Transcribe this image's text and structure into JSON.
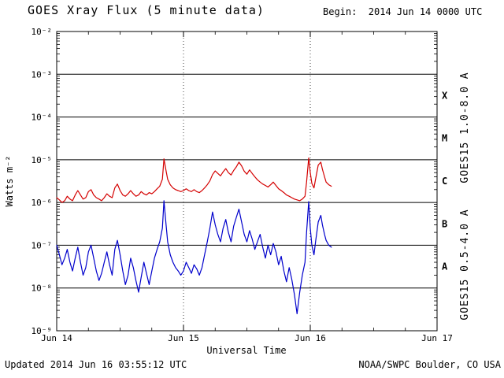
{
  "header": {
    "title": "GOES Xray Flux (5 minute data)",
    "begin_label": "Begin:  2014 Jun 14 0000 UTC"
  },
  "footer": {
    "updated": "Updated 2014 Jun 16 03:55:12 UTC",
    "credit": "NOAA/SWPC Boulder, CO USA"
  },
  "chart_data": {
    "type": "line",
    "title": "GOES Xray Flux (5 minute data)",
    "xlabel": "Universal Time",
    "ylabel": "Watts m⁻²",
    "x_unit": "hours since 2014 Jun 14 00:00 UTC",
    "x_range_hours": [
      0,
      72
    ],
    "y_log_range": [
      1e-09,
      0.01
    ],
    "y_scale": "log",
    "grid": "solid horizontal line at each decade; dotted vertical line at interior day boundaries",
    "legend_position": "right, rotated vertical labels",
    "x_ticks": [
      {
        "hours": 0,
        "label": "Jun 14"
      },
      {
        "hours": 24,
        "label": "Jun 15"
      },
      {
        "hours": 48,
        "label": "Jun 16"
      },
      {
        "hours": 72,
        "label": "Jun 17"
      }
    ],
    "y_ticks": [
      {
        "value": 0.01,
        "label": "10⁻²"
      },
      {
        "value": 0.001,
        "label": "10⁻³"
      },
      {
        "value": 0.0001,
        "label": "10⁻⁴"
      },
      {
        "value": 1e-05,
        "label": "10⁻⁵"
      },
      {
        "value": 1e-06,
        "label": "10⁻⁶"
      },
      {
        "value": 1e-07,
        "label": "10⁻⁷"
      },
      {
        "value": 1e-08,
        "label": "10⁻⁸"
      },
      {
        "value": 1e-09,
        "label": "10⁻⁹"
      }
    ],
    "flare_classes": [
      {
        "label": "X",
        "log_mid": -3.5
      },
      {
        "label": "M",
        "log_mid": -4.5
      },
      {
        "label": "C",
        "log_mid": -5.5
      },
      {
        "label": "B",
        "log_mid": -6.5
      },
      {
        "label": "A",
        "log_mid": -7.5
      }
    ],
    "series": [
      {
        "name": "GOES15 1.0-8.0 A",
        "color": "#d40000",
        "points": [
          [
            0,
            1.3e-06
          ],
          [
            0.5,
            1.15e-06
          ],
          [
            1,
            1e-06
          ],
          [
            1.5,
            1.1e-06
          ],
          [
            2,
            1.4e-06
          ],
          [
            2.5,
            1.2e-06
          ],
          [
            3,
            1.1e-06
          ],
          [
            3.5,
            1.5e-06
          ],
          [
            4,
            1.9e-06
          ],
          [
            4.5,
            1.5e-06
          ],
          [
            5,
            1.2e-06
          ],
          [
            5.5,
            1.3e-06
          ],
          [
            6,
            1.8e-06
          ],
          [
            6.5,
            2e-06
          ],
          [
            7,
            1.5e-06
          ],
          [
            7.5,
            1.3e-06
          ],
          [
            8,
            1.2e-06
          ],
          [
            8.5,
            1.1e-06
          ],
          [
            9,
            1.3e-06
          ],
          [
            9.5,
            1.6e-06
          ],
          [
            10,
            1.4e-06
          ],
          [
            10.5,
            1.3e-06
          ],
          [
            11,
            2.2e-06
          ],
          [
            11.5,
            2.7e-06
          ],
          [
            12,
            1.9e-06
          ],
          [
            12.5,
            1.5e-06
          ],
          [
            13,
            1.4e-06
          ],
          [
            13.5,
            1.6e-06
          ],
          [
            14,
            1.9e-06
          ],
          [
            14.5,
            1.6e-06
          ],
          [
            15,
            1.4e-06
          ],
          [
            15.5,
            1.5e-06
          ],
          [
            16,
            1.8e-06
          ],
          [
            16.5,
            1.6e-06
          ],
          [
            17,
            1.5e-06
          ],
          [
            17.5,
            1.7e-06
          ],
          [
            18,
            1.6e-06
          ],
          [
            18.5,
            1.8e-06
          ],
          [
            19,
            2.1e-06
          ],
          [
            19.5,
            2.4e-06
          ],
          [
            20,
            3.5e-06
          ],
          [
            20.3,
            1.05e-05
          ],
          [
            20.7,
            5.5e-06
          ],
          [
            21,
            3.5e-06
          ],
          [
            21.5,
            2.6e-06
          ],
          [
            22,
            2.2e-06
          ],
          [
            22.5,
            2e-06
          ],
          [
            23,
            1.9e-06
          ],
          [
            23.5,
            1.8e-06
          ],
          [
            24,
            1.9e-06
          ],
          [
            24.5,
            2.1e-06
          ],
          [
            25,
            1.9e-06
          ],
          [
            25.5,
            1.8e-06
          ],
          [
            26,
            2e-06
          ],
          [
            26.5,
            1.8e-06
          ],
          [
            27,
            1.7e-06
          ],
          [
            27.5,
            1.9e-06
          ],
          [
            28,
            2.2e-06
          ],
          [
            28.5,
            2.6e-06
          ],
          [
            29,
            3.2e-06
          ],
          [
            29.5,
            4.5e-06
          ],
          [
            30,
            5.5e-06
          ],
          [
            30.5,
            4.8e-06
          ],
          [
            31,
            4.2e-06
          ],
          [
            31.5,
            5.2e-06
          ],
          [
            32,
            6.2e-06
          ],
          [
            32.5,
            5e-06
          ],
          [
            33,
            4.4e-06
          ],
          [
            33.5,
            5.6e-06
          ],
          [
            34,
            6.8e-06
          ],
          [
            34.5,
            8.8e-06
          ],
          [
            35,
            7.2e-06
          ],
          [
            35.5,
            5.4e-06
          ],
          [
            36,
            4.6e-06
          ],
          [
            36.5,
            5.8e-06
          ],
          [
            37,
            4.8e-06
          ],
          [
            37.5,
            4e-06
          ],
          [
            38,
            3.4e-06
          ],
          [
            38.5,
            3e-06
          ],
          [
            39,
            2.7e-06
          ],
          [
            39.5,
            2.5e-06
          ],
          [
            40,
            2.3e-06
          ],
          [
            40.5,
            2.6e-06
          ],
          [
            41,
            3e-06
          ],
          [
            41.5,
            2.5e-06
          ],
          [
            42,
            2.1e-06
          ],
          [
            42.5,
            1.9e-06
          ],
          [
            43,
            1.7e-06
          ],
          [
            43.5,
            1.5e-06
          ],
          [
            44,
            1.4e-06
          ],
          [
            44.5,
            1.3e-06
          ],
          [
            45,
            1.2e-06
          ],
          [
            45.5,
            1.15e-06
          ],
          [
            46,
            1.1e-06
          ],
          [
            46.5,
            1.2e-06
          ],
          [
            47,
            1.4e-06
          ],
          [
            47.3,
            3e-06
          ],
          [
            47.7,
            1.1e-05
          ],
          [
            48,
            5e-06
          ],
          [
            48.3,
            2.8e-06
          ],
          [
            48.7,
            2.2e-06
          ],
          [
            49,
            3.5e-06
          ],
          [
            49.5,
            7.5e-06
          ],
          [
            50,
            8.8e-06
          ],
          [
            50.3,
            6e-06
          ],
          [
            50.7,
            4e-06
          ],
          [
            51,
            3e-06
          ],
          [
            51.5,
            2.6e-06
          ],
          [
            52,
            2.4e-06
          ]
        ]
      },
      {
        "name": "GOES15 0.5-4.0 A",
        "color": "#0000cc",
        "points": [
          [
            0,
            1e-07
          ],
          [
            0.5,
            6e-08
          ],
          [
            1,
            3.5e-08
          ],
          [
            1.5,
            5e-08
          ],
          [
            2,
            8e-08
          ],
          [
            2.5,
            4e-08
          ],
          [
            3,
            2.5e-08
          ],
          [
            3.5,
            5e-08
          ],
          [
            4,
            9e-08
          ],
          [
            4.5,
            4e-08
          ],
          [
            5,
            2e-08
          ],
          [
            5.5,
            3e-08
          ],
          [
            6,
            7e-08
          ],
          [
            6.5,
            1e-07
          ],
          [
            7,
            5e-08
          ],
          [
            7.5,
            2.5e-08
          ],
          [
            8,
            1.5e-08
          ],
          [
            8.5,
            2.2e-08
          ],
          [
            9,
            4e-08
          ],
          [
            9.5,
            7e-08
          ],
          [
            10,
            3.5e-08
          ],
          [
            10.5,
            2e-08
          ],
          [
            11,
            8e-08
          ],
          [
            11.5,
            1.3e-07
          ],
          [
            12,
            6e-08
          ],
          [
            12.5,
            2.5e-08
          ],
          [
            13,
            1.2e-08
          ],
          [
            13.5,
            2e-08
          ],
          [
            14,
            5e-08
          ],
          [
            14.5,
            3e-08
          ],
          [
            15,
            1.5e-08
          ],
          [
            15.5,
            8e-09
          ],
          [
            16,
            1.8e-08
          ],
          [
            16.5,
            4e-08
          ],
          [
            17,
            2.2e-08
          ],
          [
            17.5,
            1.2e-08
          ],
          [
            18,
            2.5e-08
          ],
          [
            18.5,
            5e-08
          ],
          [
            19,
            8e-08
          ],
          [
            19.5,
            1.2e-07
          ],
          [
            20,
            2.5e-07
          ],
          [
            20.3,
            1.1e-06
          ],
          [
            20.7,
            3e-07
          ],
          [
            21,
            1.2e-07
          ],
          [
            21.5,
            6e-08
          ],
          [
            22,
            4e-08
          ],
          [
            22.5,
            3e-08
          ],
          [
            23,
            2.5e-08
          ],
          [
            23.5,
            2e-08
          ],
          [
            24,
            2.5e-08
          ],
          [
            24.5,
            4e-08
          ],
          [
            25,
            3e-08
          ],
          [
            25.5,
            2.2e-08
          ],
          [
            26,
            3.5e-08
          ],
          [
            26.5,
            2.8e-08
          ],
          [
            27,
            2e-08
          ],
          [
            27.5,
            3e-08
          ],
          [
            28,
            6e-08
          ],
          [
            28.5,
            1.2e-07
          ],
          [
            29,
            2.5e-07
          ],
          [
            29.5,
            6e-07
          ],
          [
            30,
            3e-07
          ],
          [
            30.5,
            1.8e-07
          ],
          [
            31,
            1.2e-07
          ],
          [
            31.5,
            2.5e-07
          ],
          [
            32,
            4e-07
          ],
          [
            32.5,
            2e-07
          ],
          [
            33,
            1.2e-07
          ],
          [
            33.5,
            2.8e-07
          ],
          [
            34,
            4.5e-07
          ],
          [
            34.5,
            7e-07
          ],
          [
            35,
            3.5e-07
          ],
          [
            35.5,
            1.8e-07
          ],
          [
            36,
            1.2e-07
          ],
          [
            36.5,
            2.2e-07
          ],
          [
            37,
            1.4e-07
          ],
          [
            37.5,
            8e-08
          ],
          [
            38,
            1.2e-07
          ],
          [
            38.5,
            1.8e-07
          ],
          [
            39,
            9e-08
          ],
          [
            39.5,
            5e-08
          ],
          [
            40,
            1e-07
          ],
          [
            40.5,
            6e-08
          ],
          [
            41,
            1.1e-07
          ],
          [
            41.5,
            7e-08
          ],
          [
            42,
            3.5e-08
          ],
          [
            42.5,
            5.5e-08
          ],
          [
            43,
            2.5e-08
          ],
          [
            43.5,
            1.4e-08
          ],
          [
            44,
            3e-08
          ],
          [
            44.5,
            1.6e-08
          ],
          [
            45,
            7e-09
          ],
          [
            45.5,
            2.5e-09
          ],
          [
            46,
            8e-09
          ],
          [
            46.5,
            2e-08
          ],
          [
            47,
            4e-08
          ],
          [
            47.3,
            2e-07
          ],
          [
            47.7,
            1.05e-06
          ],
          [
            48,
            2.5e-07
          ],
          [
            48.3,
            1e-07
          ],
          [
            48.7,
            6e-08
          ],
          [
            49,
            1.2e-07
          ],
          [
            49.5,
            3.5e-07
          ],
          [
            50,
            5e-07
          ],
          [
            50.3,
            3e-07
          ],
          [
            50.7,
            1.8e-07
          ],
          [
            51,
            1.3e-07
          ],
          [
            51.5,
            1e-07
          ],
          [
            52,
            9e-08
          ]
        ]
      }
    ]
  }
}
